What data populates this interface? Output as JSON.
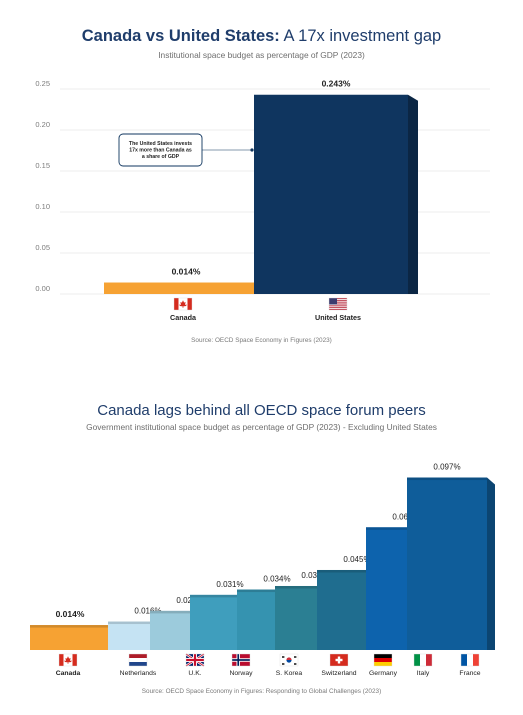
{
  "charts": {
    "top": {
      "title_bold": "Canada vs United States:",
      "title_rest": " A 17x investment gap",
      "subtitle": "Institutional space budget as percentage of GDP (2023)",
      "source": "Source: OECD Space Economy in Figures (2023)",
      "annotation": [
        "The United States invests",
        "17x more than Canada as",
        "a share of GDP"
      ]
    },
    "bottom": {
      "title": "Canada lags behind all OECD space forum peers",
      "subtitle": "Government institutional space budget as percentage of GDP (2023) - Excluding United States",
      "source": "Source: OECD Space Economy in Figures: Responding to Global Challenges (2023)"
    }
  },
  "colors": {
    "canada": "#f6a233",
    "us": "#0f355f",
    "grid": "#e8e8e8",
    "title": "#1f3d6b"
  },
  "chart_data": [
    {
      "type": "bar",
      "title": "Canada vs United States: A 17x investment gap",
      "subtitle": "Institutional space budget as percentage of GDP (2023)",
      "categories": [
        "Canada",
        "United States"
      ],
      "values": [
        0.014,
        0.243
      ],
      "data_labels": [
        "0.014%",
        "0.243%"
      ],
      "ylim": [
        0,
        0.25
      ],
      "yticks": [
        "0.00",
        "0.05",
        "0.10",
        "0.15",
        "0.20",
        "0.25"
      ],
      "grid": true,
      "colors": [
        "#f6a233",
        "#0f355f"
      ]
    },
    {
      "type": "bar",
      "title": "Canada lags behind all OECD space forum peers",
      "subtitle": "Government institutional space budget as percentage of GDP (2023) - Excluding United States",
      "categories": [
        "Canada",
        "Netherlands",
        "U.K.",
        "Norway",
        "S. Korea",
        "Switzerland",
        "Germany",
        "Italy",
        "France"
      ],
      "values": [
        0.014,
        0.016,
        0.022,
        0.031,
        0.034,
        0.036,
        0.045,
        0.069,
        0.097
      ],
      "data_labels": [
        "0.014%",
        "0.016%",
        "0.022%",
        "0.031%",
        "0.034%",
        "0.036%",
        "0.045%",
        "0.069%",
        "0.097%"
      ],
      "colors": [
        "#f6a233",
        "#c5e3f3",
        "#9ccbdc",
        "#3f9ebd",
        "#3593b0",
        "#2b7f93",
        "#1f6d8f",
        "#0d63ad",
        "#0f5d9a"
      ]
    }
  ]
}
